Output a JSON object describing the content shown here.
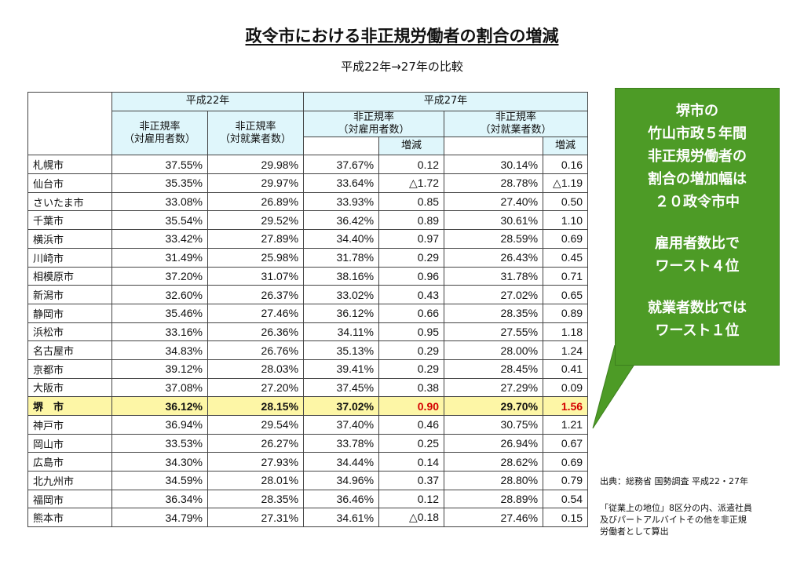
{
  "title": "政令市における非正規労働者の割合の増減",
  "subtitle": "平成22年→27年の比較",
  "table": {
    "header_h22": "平成22年",
    "header_h27": "平成27年",
    "col_a_line1": "非正規率",
    "col_a_line2": "（対雇用者数）",
    "col_b_line1": "非正規率",
    "col_b_line2": "（対就業者数）",
    "col_c_line1": "非正規率",
    "col_c_line2": "（対雇用者数）",
    "col_d_line1": "非正規率",
    "col_d_line2": "（対就業者数）",
    "change_label_1": "増減",
    "change_label_2": "増減",
    "rows": [
      [
        "札幌市",
        "37.55%",
        "29.98%",
        "37.67%",
        "0.12",
        "30.14%",
        "0.16"
      ],
      [
        "仙台市",
        "35.35%",
        "29.97%",
        "33.64%",
        "△1.72",
        "28.78%",
        "△1.19"
      ],
      [
        "さいたま市",
        "33.08%",
        "26.89%",
        "33.93%",
        "0.85",
        "27.40%",
        "0.50"
      ],
      [
        "千葉市",
        "35.54%",
        "29.52%",
        "36.42%",
        "0.89",
        "30.61%",
        "1.10"
      ],
      [
        "横浜市",
        "33.42%",
        "27.89%",
        "34.40%",
        "0.97",
        "28.59%",
        "0.69"
      ],
      [
        "川崎市",
        "31.49%",
        "25.98%",
        "31.78%",
        "0.29",
        "26.43%",
        "0.45"
      ],
      [
        "相模原市",
        "37.20%",
        "31.07%",
        "38.16%",
        "0.96",
        "31.78%",
        "0.71"
      ],
      [
        "新潟市",
        "32.60%",
        "26.37%",
        "33.02%",
        "0.43",
        "27.02%",
        "0.65"
      ],
      [
        "静岡市",
        "35.46%",
        "27.46%",
        "36.12%",
        "0.66",
        "28.35%",
        "0.89"
      ],
      [
        "浜松市",
        "33.16%",
        "26.36%",
        "34.11%",
        "0.95",
        "27.55%",
        "1.18"
      ],
      [
        "名古屋市",
        "34.83%",
        "26.76%",
        "35.13%",
        "0.29",
        "28.00%",
        "1.24"
      ],
      [
        "京都市",
        "39.12%",
        "28.03%",
        "39.41%",
        "0.29",
        "28.45%",
        "0.41"
      ],
      [
        "大阪市",
        "37.08%",
        "27.20%",
        "37.45%",
        "0.38",
        "27.29%",
        "0.09"
      ],
      [
        "堺　市",
        "36.12%",
        "28.15%",
        "37.02%",
        "0.90",
        "29.70%",
        "1.56"
      ],
      [
        "神戸市",
        "36.94%",
        "29.54%",
        "37.40%",
        "0.46",
        "30.75%",
        "1.21"
      ],
      [
        "岡山市",
        "33.53%",
        "26.27%",
        "33.78%",
        "0.25",
        "26.94%",
        "0.67"
      ],
      [
        "広島市",
        "34.30%",
        "27.93%",
        "34.44%",
        "0.14",
        "28.62%",
        "0.69"
      ],
      [
        "北九州市",
        "34.59%",
        "28.01%",
        "34.96%",
        "0.37",
        "28.80%",
        "0.79"
      ],
      [
        "福岡市",
        "36.34%",
        "28.35%",
        "36.46%",
        "0.12",
        "28.89%",
        "0.54"
      ],
      [
        "熊本市",
        "34.79%",
        "27.31%",
        "34.61%",
        "△0.18",
        "27.46%",
        "0.15"
      ]
    ],
    "highlight_row": 13,
    "highlight_color": "#fdf6a6",
    "highlight_text_color": "#d40000",
    "header_color": "#dff6fb"
  },
  "callout": {
    "color": "#4d9b26",
    "block1": [
      "堺市の",
      "竹山市政５年間",
      "非正規労働者の",
      "割合の増加幅は",
      "２０政令市中"
    ],
    "block2": [
      "雇用者数比で",
      "ワースト４位"
    ],
    "block3": [
      "就業者数比では",
      "ワースト１位"
    ]
  },
  "source": "出典：総務省 国勢調査 平成22・27年",
  "note": [
    "「従業上の地位」8区分の内、派遣社員",
    "及びパートアルバイトその他を非正規",
    "労働者として算出"
  ]
}
